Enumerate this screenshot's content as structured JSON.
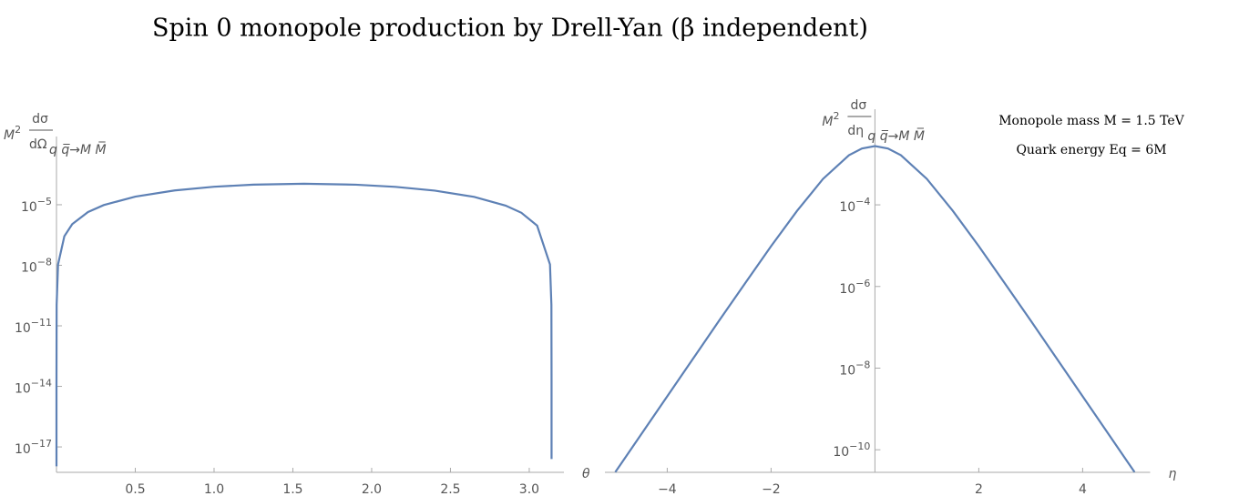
{
  "figure_title": "Spin 0 monopole production by Drell-Yan (β independent)",
  "chart_data": [
    {
      "type": "line",
      "x": [
        1e-07,
        1e-05,
        0.001,
        0.01,
        0.05,
        0.1,
        0.2,
        0.3,
        0.5,
        0.75,
        1.0,
        1.25,
        1.5708,
        1.9,
        2.15,
        2.4,
        2.65,
        2.85,
        2.95,
        3.05,
        3.1316,
        3.1406,
        3.14158,
        3.1415925
      ],
      "values": [
        1.1e-18,
        1.1e-14,
        1.1e-10,
        1.1e-08,
        2.75e-07,
        1.1e-06,
        4.34e-06,
        9.61e-06,
        2.53e-05,
        5.11e-05,
        7.79e-05,
        9.9e-05,
        0.00011,
        9.85e-05,
        7.7e-05,
        5.02e-05,
        2.45e-05,
        9.09e-06,
        3.99e-06,
        9.21e-07,
        1.1e-08,
        1.1e-10,
        1.8e-14,
        2.5e-18
      ],
      "color": "#5e81b5",
      "log_y": true,
      "xlim": [
        0,
        3.22
      ],
      "ylim": [
        5.5e-19,
        0.024
      ],
      "xticks": [
        0.5,
        {
          "value": 1,
          "label": "1.0"
        },
        1.5,
        {
          "value": 2,
          "label": "2.0"
        },
        2.5,
        {
          "value": 3,
          "label": "3.0"
        }
      ],
      "yticks": [
        {
          "value": 1e-17,
          "label": "10−17"
        },
        {
          "value": 1e-14,
          "label": "10−14"
        },
        {
          "value": 1e-11,
          "label": "10−11"
        },
        {
          "value": 1e-08,
          "label": "10−8"
        },
        {
          "value": 1e-05,
          "label": "10−5"
        }
      ],
      "xlabel": "θ",
      "ylabel": {
        "factor": "M2",
        "numerator": "dσ",
        "denominator": "dΩ",
        "subscript": "q q̅→M M̅"
      }
    },
    {
      "type": "line",
      "x": [
        -5,
        -4.5,
        -4,
        -3.5,
        -3,
        -2.5,
        -2,
        -1.5,
        -1,
        -0.5,
        -0.25,
        0,
        0.25,
        0.5,
        1,
        1.5,
        2,
        2.5,
        3,
        3.5,
        4,
        4.5,
        5
      ],
      "values": [
        2.83e-11,
        2.4e-10,
        2.03e-09,
        1.72e-08,
        1.46e-07,
        1.2e-06,
        9.7e-06,
        7.11e-05,
        0.000432,
        0.00164,
        0.0024,
        0.00275,
        0.0024,
        0.00164,
        0.000432,
        7.11e-05,
        9.7e-06,
        1.2e-06,
        1.46e-07,
        1.72e-08,
        2.03e-09,
        2.4e-10,
        2.83e-11
      ],
      "color": "#5e81b5",
      "log_y": true,
      "xlim": [
        -5.2,
        5.3
      ],
      "ylim": [
        2.8e-11,
        0.022
      ],
      "xticks": [
        {
          "value": -4,
          "label": "−4"
        },
        {
          "value": -2,
          "label": "−2"
        },
        2,
        4
      ],
      "yticks": [
        {
          "value": 1e-10,
          "label": "10−10"
        },
        {
          "value": 1e-08,
          "label": "10−8"
        },
        {
          "value": 1e-06,
          "label": "10−6"
        },
        {
          "value": 0.0001,
          "label": "10−4"
        }
      ],
      "xlabel": "η",
      "ylabel": {
        "factor": "M2",
        "numerator": "dσ",
        "denominator": "dη",
        "subscript": "q q̅→M M̅"
      },
      "annotations": [
        "Monopole mass M = 1.5 TeV",
        "Quark energy Eq = 6M"
      ]
    }
  ]
}
